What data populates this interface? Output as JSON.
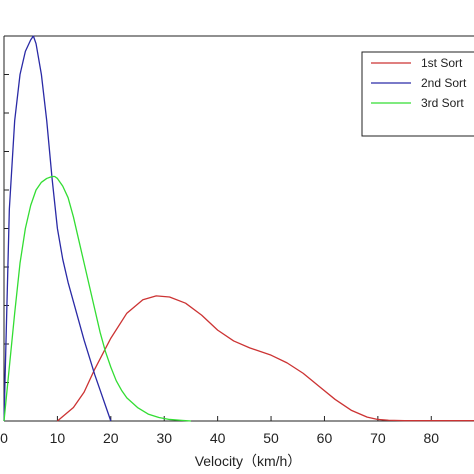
{
  "chart_data": {
    "type": "line",
    "title": "",
    "xlabel": "Velocity（km/h）",
    "ylabel": "",
    "xlim": [
      0,
      88
    ],
    "ylim": [
      0,
      1
    ],
    "x_ticks": [
      0,
      10,
      20,
      30,
      40,
      50,
      60,
      70,
      80
    ],
    "y_tick_count": 11,
    "grid": false,
    "legend_position": "top-right",
    "series": [
      {
        "name": "1st Sort",
        "color": "#cc3333",
        "x": [
          10,
          13,
          15,
          17,
          20,
          23,
          26,
          28.5,
          31,
          34,
          37,
          40,
          43,
          46,
          50,
          53,
          56,
          59,
          62,
          65,
          68,
          70,
          72,
          75,
          80,
          88
        ],
        "y": [
          0,
          0.035,
          0.075,
          0.135,
          0.215,
          0.28,
          0.315,
          0.325,
          0.322,
          0.306,
          0.275,
          0.236,
          0.208,
          0.19,
          0.171,
          0.151,
          0.124,
          0.09,
          0.056,
          0.028,
          0.01,
          0.004,
          0.002,
          0.001,
          0.001,
          0.001
        ]
      },
      {
        "name": "2nd Sort",
        "color": "#2a2aa6",
        "x": [
          0,
          1,
          2,
          3,
          4,
          5,
          5.5,
          6,
          7,
          8,
          9,
          10,
          11,
          12,
          13,
          14,
          15,
          16,
          17,
          18,
          19,
          20
        ],
        "y": [
          0,
          0.55,
          0.78,
          0.9,
          0.96,
          0.99,
          1.0,
          0.98,
          0.9,
          0.78,
          0.63,
          0.5,
          0.42,
          0.36,
          0.31,
          0.26,
          0.21,
          0.165,
          0.12,
          0.08,
          0.04,
          0
        ]
      },
      {
        "name": "3rd Sort",
        "color": "#33dd33",
        "x": [
          0,
          1,
          2,
          3,
          4,
          5,
          6,
          7,
          8,
          9,
          9.5,
          10,
          11,
          12,
          13,
          14,
          15,
          16,
          17,
          18,
          19,
          20,
          21,
          22,
          23,
          25,
          27,
          29,
          31,
          33,
          35
        ],
        "y": [
          0,
          0.14,
          0.28,
          0.41,
          0.5,
          0.56,
          0.6,
          0.62,
          0.63,
          0.635,
          0.635,
          0.63,
          0.61,
          0.58,
          0.53,
          0.47,
          0.41,
          0.35,
          0.29,
          0.23,
          0.18,
          0.14,
          0.105,
          0.08,
          0.06,
          0.035,
          0.018,
          0.009,
          0.004,
          0.002,
          0
        ]
      }
    ]
  }
}
